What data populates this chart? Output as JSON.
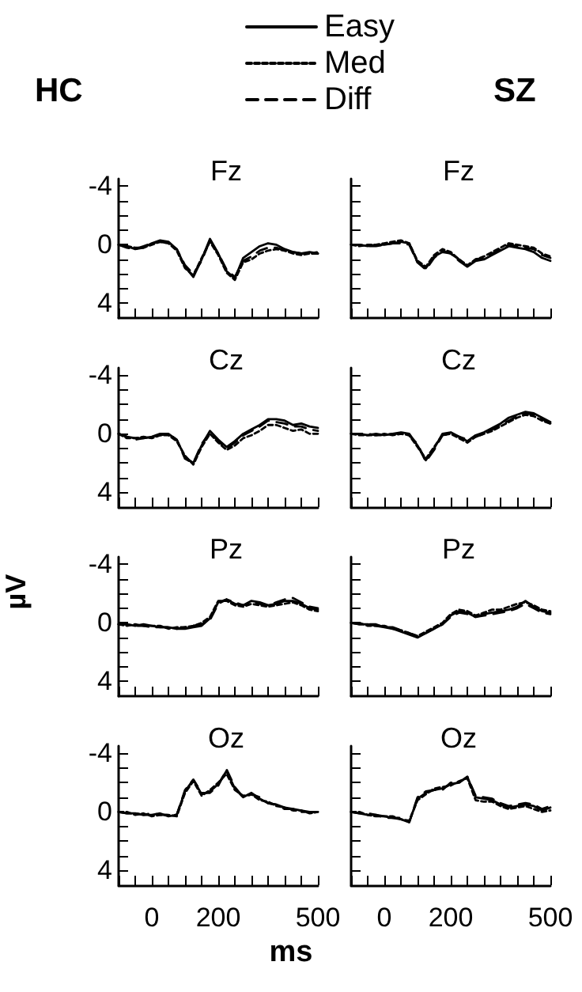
{
  "chart_data": [
    {
      "type": "line",
      "title": "Fz",
      "annotations": [
        "HC"
      ],
      "legend": "top",
      "marker": "none",
      "grid": false,
      "tick_labels": "y",
      "x": [
        -100,
        -75,
        -50,
        -25,
        0,
        25,
        50,
        75,
        100,
        125,
        150,
        175,
        200,
        225,
        250,
        275,
        300,
        325,
        350,
        375,
        400,
        425,
        450,
        475,
        500
      ],
      "xlim": [
        -100,
        500
      ],
      "xticks": [
        {
          "value": -100,
          "label": null
        },
        {
          "value": -50,
          "label": null
        },
        0,
        {
          "value": 50,
          "label": null
        },
        {
          "value": 100,
          "label": null
        },
        {
          "value": 150,
          "label": null
        },
        200,
        {
          "value": 250,
          "label": null
        },
        {
          "value": 300,
          "label": null
        },
        {
          "value": 350,
          "label": null
        },
        {
          "value": 400,
          "label": null
        },
        {
          "value": 450,
          "label": null
        },
        500
      ],
      "ylim": [
        5,
        -4.5
      ],
      "yticks": [
        -4,
        {
          "value": -3,
          "label": null
        },
        {
          "value": -2,
          "label": null
        },
        {
          "value": -1,
          "label": null
        },
        0,
        {
          "value": 1,
          "label": null
        },
        {
          "value": 2,
          "label": null
        },
        {
          "value": 3,
          "label": null
        },
        4
      ],
      "series": [
        {
          "name": "Easy",
          "color": "#000000",
          "line_style": "solid",
          "values": [
            0,
            0.1,
            0.3,
            0.2,
            -0.1,
            -0.3,
            -0.2,
            0.3,
            1.5,
            2.2,
            1.0,
            -0.4,
            0.6,
            1.8,
            2.3,
            0.9,
            0.5,
            0.1,
            -0.1,
            0,
            0.3,
            0.5,
            0.6,
            0.5,
            0.6
          ]
        },
        {
          "name": "Med",
          "color": "#000000",
          "line_style": "dotted",
          "values": [
            0,
            0.1,
            0.2,
            0.2,
            0,
            -0.2,
            -0.1,
            0.4,
            1.6,
            2.1,
            0.9,
            -0.2,
            0.7,
            1.9,
            2.4,
            1.2,
            1.0,
            0.6,
            0.4,
            0.3,
            0.4,
            0.6,
            0.7,
            0.6,
            0.5
          ]
        },
        {
          "name": "Diff",
          "color": "#000000",
          "line_style": "dashed",
          "values": [
            0,
            0.2,
            0.3,
            0.1,
            -0.1,
            -0.2,
            -0.1,
            0.3,
            1.4,
            2.0,
            1.1,
            -0.3,
            0.6,
            1.7,
            2.2,
            1.1,
            0.8,
            0.4,
            0.2,
            0.2,
            0.4,
            0.5,
            0.6,
            0.6,
            0.6
          ]
        }
      ]
    },
    {
      "type": "line",
      "title": "Fz",
      "annotations": [
        "SZ"
      ],
      "marker": "none",
      "grid": false,
      "tick_labels": false,
      "x": [
        -100,
        -75,
        -50,
        -25,
        0,
        25,
        50,
        75,
        100,
        125,
        150,
        175,
        200,
        225,
        250,
        275,
        300,
        325,
        350,
        375,
        400,
        425,
        450,
        475,
        500
      ],
      "xlim": [
        -100,
        500
      ],
      "xticks": [
        {
          "value": -100,
          "label": null
        },
        {
          "value": -50,
          "label": null
        },
        0,
        {
          "value": 50,
          "label": null
        },
        {
          "value": 100,
          "label": null
        },
        {
          "value": 150,
          "label": null
        },
        200,
        {
          "value": 250,
          "label": null
        },
        {
          "value": 300,
          "label": null
        },
        {
          "value": 350,
          "label": null
        },
        {
          "value": 400,
          "label": null
        },
        {
          "value": 450,
          "label": null
        },
        500
      ],
      "ylim": [
        5,
        -4.5
      ],
      "yticks": [
        -4,
        {
          "value": -3,
          "label": null
        },
        {
          "value": -2,
          "label": null
        },
        {
          "value": -1,
          "label": null
        },
        0,
        {
          "value": 1,
          "label": null
        },
        {
          "value": 2,
          "label": null
        },
        {
          "value": 3,
          "label": null
        },
        4
      ],
      "series": [
        {
          "color": "#000000",
          "line_style": "solid",
          "values": [
            0,
            0,
            0.1,
            0,
            0,
            -0.1,
            -0.2,
            -0.1,
            1.2,
            1.6,
            0.8,
            0.5,
            0.6,
            1.0,
            1.5,
            1.1,
            1.0,
            0.7,
            0.4,
            0.1,
            0.2,
            0.3,
            0.5,
            0.9,
            1.1
          ]
        },
        {
          "color": "#000000",
          "line_style": "dotted",
          "values": [
            0,
            0.1,
            0,
            0,
            -0.1,
            -0.2,
            -0.3,
            -0.1,
            1.1,
            1.5,
            0.7,
            0.3,
            0.5,
            1.0,
            1.4,
            1.0,
            0.8,
            0.5,
            0.2,
            -0.1,
            0,
            0.1,
            0.2,
            0.6,
            0.8
          ]
        },
        {
          "color": "#000000",
          "line_style": "dashed",
          "values": [
            0,
            0,
            0.1,
            0.1,
            0,
            -0.1,
            -0.1,
            0,
            1.2,
            1.7,
            0.9,
            0.4,
            0.6,
            1.1,
            1.5,
            1.0,
            0.9,
            0.6,
            0.3,
            0,
            0.1,
            0.2,
            0.3,
            0.7,
            0.9
          ]
        }
      ]
    },
    {
      "type": "line",
      "title": "Cz",
      "marker": "none",
      "grid": false,
      "tick_labels": "y",
      "x": [
        -100,
        -75,
        -50,
        -25,
        0,
        25,
        50,
        75,
        100,
        125,
        150,
        175,
        200,
        225,
        250,
        275,
        300,
        325,
        350,
        375,
        400,
        425,
        450,
        475,
        500
      ],
      "xlim": [
        -100,
        500
      ],
      "xticks": [
        {
          "value": -100,
          "label": null
        },
        {
          "value": -50,
          "label": null
        },
        0,
        {
          "value": 50,
          "label": null
        },
        {
          "value": 100,
          "label": null
        },
        {
          "value": 150,
          "label": null
        },
        200,
        {
          "value": 250,
          "label": null
        },
        {
          "value": 300,
          "label": null
        },
        {
          "value": 350,
          "label": null
        },
        {
          "value": 400,
          "label": null
        },
        {
          "value": 450,
          "label": null
        },
        500
      ],
      "ylim": [
        5,
        -4.5
      ],
      "yticks": [
        -4,
        {
          "value": -3,
          "label": null
        },
        {
          "value": -2,
          "label": null
        },
        {
          "value": -1,
          "label": null
        },
        0,
        {
          "value": 1,
          "label": null
        },
        {
          "value": 2,
          "label": null
        },
        {
          "value": 3,
          "label": null
        },
        4
      ],
      "series": [
        {
          "color": "#000000",
          "line_style": "solid",
          "values": [
            0,
            0.2,
            0.3,
            0.3,
            0.2,
            0,
            0,
            0.4,
            1.6,
            2.0,
            0.8,
            -0.2,
            0.4,
            0.9,
            0.5,
            0,
            -0.3,
            -0.6,
            -1.0,
            -1.0,
            -0.9,
            -0.6,
            -0.7,
            -0.5,
            -0.4
          ]
        },
        {
          "color": "#000000",
          "line_style": "dotted",
          "values": [
            0,
            0.3,
            0.3,
            0.2,
            0.3,
            0.1,
            0.1,
            0.5,
            1.5,
            2.1,
            0.9,
            0,
            0.6,
            1.1,
            0.8,
            0.3,
            0.1,
            -0.2,
            -0.6,
            -0.6,
            -0.4,
            -0.2,
            -0.3,
            0,
            0
          ]
        },
        {
          "color": "#000000",
          "line_style": "dashed",
          "values": [
            0,
            0.2,
            0.4,
            0.3,
            0.2,
            0.1,
            0,
            0.4,
            1.7,
            2.0,
            0.7,
            -0.1,
            0.5,
            1.0,
            0.6,
            0.1,
            -0.2,
            -0.5,
            -0.9,
            -0.8,
            -0.7,
            -0.5,
            -0.5,
            -0.3,
            -0.2
          ]
        }
      ]
    },
    {
      "type": "line",
      "title": "Cz",
      "marker": "none",
      "grid": false,
      "tick_labels": false,
      "x": [
        -100,
        -75,
        -50,
        -25,
        0,
        25,
        50,
        75,
        100,
        125,
        150,
        175,
        200,
        225,
        250,
        275,
        300,
        325,
        350,
        375,
        400,
        425,
        450,
        475,
        500
      ],
      "xlim": [
        -100,
        500
      ],
      "xticks": [
        {
          "value": -100,
          "label": null
        },
        {
          "value": -50,
          "label": null
        },
        0,
        {
          "value": 50,
          "label": null
        },
        {
          "value": 100,
          "label": null
        },
        {
          "value": 150,
          "label": null
        },
        200,
        {
          "value": 250,
          "label": null
        },
        {
          "value": 300,
          "label": null
        },
        {
          "value": 350,
          "label": null
        },
        {
          "value": 400,
          "label": null
        },
        {
          "value": 450,
          "label": null
        },
        500
      ],
      "ylim": [
        5,
        -4.5
      ],
      "yticks": [
        -4,
        {
          "value": -3,
          "label": null
        },
        {
          "value": -2,
          "label": null
        },
        {
          "value": -1,
          "label": null
        },
        0,
        {
          "value": 1,
          "label": null
        },
        {
          "value": 2,
          "label": null
        },
        {
          "value": 3,
          "label": null
        },
        4
      ],
      "series": [
        {
          "color": "#000000",
          "line_style": "solid",
          "values": [
            0,
            0,
            0.1,
            0,
            0.1,
            0,
            -0.1,
            0,
            0.8,
            1.8,
            1.0,
            0,
            -0.1,
            0.2,
            0.5,
            0.1,
            -0.1,
            -0.4,
            -0.7,
            -1.1,
            -1.3,
            -1.5,
            -1.4,
            -1.1,
            -0.8
          ]
        },
        {
          "color": "#000000",
          "line_style": "dotted",
          "values": [
            0,
            0.1,
            0.1,
            0.1,
            0,
            0.1,
            0,
            0.1,
            0.9,
            1.7,
            0.9,
            0.1,
            0,
            0.3,
            0.6,
            0.2,
            0,
            -0.2,
            -0.5,
            -0.8,
            -1.1,
            -1.3,
            -1.2,
            -0.9,
            -0.7
          ]
        },
        {
          "color": "#000000",
          "line_style": "dashed",
          "values": [
            0,
            0,
            0,
            0.1,
            0.1,
            0,
            0,
            0.1,
            0.7,
            1.9,
            1.1,
            0.1,
            0,
            0.2,
            0.4,
            0.2,
            0,
            -0.3,
            -0.6,
            -0.9,
            -1.2,
            -1.4,
            -1.3,
            -1.0,
            -0.7
          ]
        }
      ]
    },
    {
      "type": "line",
      "title": "Pz",
      "ylabel": "µV",
      "marker": "none",
      "grid": false,
      "tick_labels": "y",
      "x": [
        -100,
        -75,
        -50,
        -25,
        0,
        25,
        50,
        75,
        100,
        125,
        150,
        175,
        200,
        225,
        250,
        275,
        300,
        325,
        350,
        375,
        400,
        425,
        450,
        475,
        500
      ],
      "xlim": [
        -100,
        500
      ],
      "xticks": [
        {
          "value": -100,
          "label": null
        },
        {
          "value": -50,
          "label": null
        },
        0,
        {
          "value": 50,
          "label": null
        },
        {
          "value": 100,
          "label": null
        },
        {
          "value": 150,
          "label": null
        },
        200,
        {
          "value": 250,
          "label": null
        },
        {
          "value": 300,
          "label": null
        },
        {
          "value": 350,
          "label": null
        },
        {
          "value": 400,
          "label": null
        },
        {
          "value": 450,
          "label": null
        },
        500
      ],
      "ylim": [
        5,
        -4.5
      ],
      "yticks": [
        -4,
        {
          "value": -3,
          "label": null
        },
        {
          "value": -2,
          "label": null
        },
        {
          "value": -1,
          "label": null
        },
        0,
        {
          "value": 1,
          "label": null
        },
        {
          "value": 2,
          "label": null
        },
        {
          "value": 3,
          "label": null
        },
        4
      ],
      "series": [
        {
          "color": "#000000",
          "line_style": "solid",
          "values": [
            0.1,
            0.1,
            0.2,
            0.1,
            0.2,
            0.3,
            0.3,
            0.4,
            0.4,
            0.3,
            0.2,
            -0.3,
            -1.4,
            -1.6,
            -1.3,
            -1.2,
            -1.5,
            -1.4,
            -1.2,
            -1.3,
            -1.5,
            -1.5,
            -1.3,
            -1.0,
            -0.9
          ]
        },
        {
          "color": "#000000",
          "line_style": "dotted",
          "values": [
            0.1,
            0.2,
            0.1,
            0.2,
            0.2,
            0.2,
            0.4,
            0.3,
            0.3,
            0.2,
            0,
            -0.4,
            -1.5,
            -1.5,
            -1.2,
            -1.1,
            -1.3,
            -1.2,
            -1.1,
            -1.2,
            -1.3,
            -1.4,
            -1.2,
            -0.9,
            -0.8
          ]
        },
        {
          "color": "#000000",
          "line_style": "dashed",
          "values": [
            0.1,
            0.1,
            0.2,
            0.2,
            0.3,
            0.3,
            0.3,
            0.4,
            0.3,
            0.2,
            0.1,
            -0.2,
            -1.3,
            -1.6,
            -1.4,
            -1.2,
            -1.4,
            -1.3,
            -1.2,
            -1.4,
            -1.6,
            -1.7,
            -1.4,
            -1.1,
            -1.0
          ]
        }
      ]
    },
    {
      "type": "line",
      "title": "Pz",
      "marker": "none",
      "grid": false,
      "tick_labels": false,
      "x": [
        -100,
        -75,
        -50,
        -25,
        0,
        25,
        50,
        75,
        100,
        125,
        150,
        175,
        200,
        225,
        250,
        275,
        300,
        325,
        350,
        375,
        400,
        425,
        450,
        475,
        500
      ],
      "xlim": [
        -100,
        500
      ],
      "xticks": [
        {
          "value": -100,
          "label": null
        },
        {
          "value": -50,
          "label": null
        },
        0,
        {
          "value": 50,
          "label": null
        },
        {
          "value": 100,
          "label": null
        },
        {
          "value": 150,
          "label": null
        },
        200,
        {
          "value": 250,
          "label": null
        },
        {
          "value": 300,
          "label": null
        },
        {
          "value": 350,
          "label": null
        },
        {
          "value": 400,
          "label": null
        },
        {
          "value": 450,
          "label": null
        },
        500
      ],
      "ylim": [
        5,
        -4.5
      ],
      "yticks": [
        -4,
        {
          "value": -3,
          "label": null
        },
        {
          "value": -2,
          "label": null
        },
        {
          "value": -1,
          "label": null
        },
        0,
        {
          "value": 1,
          "label": null
        },
        {
          "value": 2,
          "label": null
        },
        {
          "value": 3,
          "label": null
        },
        4
      ],
      "series": [
        {
          "color": "#000000",
          "line_style": "solid",
          "values": [
            0,
            0.1,
            0.1,
            0.2,
            0.3,
            0.4,
            0.6,
            0.8,
            1.0,
            0.7,
            0.4,
            0.1,
            -0.5,
            -0.8,
            -0.7,
            -0.4,
            -0.6,
            -0.7,
            -0.8,
            -0.9,
            -1.1,
            -1.5,
            -1.1,
            -0.8,
            -0.7
          ]
        },
        {
          "color": "#000000",
          "line_style": "dotted",
          "values": [
            0,
            0,
            0.2,
            0.2,
            0.2,
            0.4,
            0.5,
            0.7,
            0.9,
            0.6,
            0.3,
            0,
            -0.6,
            -0.9,
            -0.8,
            -0.5,
            -0.7,
            -0.9,
            -0.9,
            -1.1,
            -1.3,
            -1.4,
            -1.2,
            -0.9,
            -0.8
          ]
        },
        {
          "color": "#000000",
          "line_style": "dashed",
          "values": [
            0,
            0.1,
            0.1,
            0.1,
            0.3,
            0.3,
            0.5,
            0.7,
            0.9,
            0.7,
            0.4,
            0.1,
            -0.4,
            -0.7,
            -0.6,
            -0.4,
            -0.5,
            -0.6,
            -0.7,
            -0.8,
            -1.0,
            -1.3,
            -1.0,
            -0.7,
            -0.6
          ]
        }
      ]
    },
    {
      "type": "line",
      "title": "Oz",
      "xlabel": "ms",
      "marker": "none",
      "grid": false,
      "x": [
        -100,
        -75,
        -50,
        -25,
        0,
        25,
        50,
        75,
        100,
        125,
        150,
        175,
        200,
        225,
        250,
        275,
        300,
        325,
        350,
        375,
        400,
        425,
        450,
        475,
        500
      ],
      "xlim": [
        -100,
        500
      ],
      "xticks": [
        {
          "value": -100,
          "label": null
        },
        {
          "value": -50,
          "label": null
        },
        0,
        {
          "value": 50,
          "label": null
        },
        {
          "value": 100,
          "label": null
        },
        {
          "value": 150,
          "label": null
        },
        200,
        {
          "value": 250,
          "label": null
        },
        {
          "value": 300,
          "label": null
        },
        {
          "value": 350,
          "label": null
        },
        {
          "value": 400,
          "label": null
        },
        {
          "value": 450,
          "label": null
        },
        500
      ],
      "ylim": [
        5,
        -4.5
      ],
      "yticks": [
        -4,
        {
          "value": -3,
          "label": null
        },
        {
          "value": -2,
          "label": null
        },
        {
          "value": -1,
          "label": null
        },
        0,
        {
          "value": 1,
          "label": null
        },
        {
          "value": 2,
          "label": null
        },
        {
          "value": 3,
          "label": null
        },
        4
      ],
      "series": [
        {
          "color": "#000000",
          "line_style": "solid",
          "values": [
            0,
            0.1,
            0.1,
            0.2,
            0.2,
            0.1,
            0.3,
            0.2,
            -1.4,
            -2.2,
            -1.2,
            -1.4,
            -1.9,
            -2.8,
            -1.6,
            -1.0,
            -1.3,
            -0.9,
            -0.6,
            -0.5,
            -0.3,
            -0.2,
            -0.1,
            0,
            0
          ]
        },
        {
          "color": "#000000",
          "line_style": "dotted",
          "values": [
            0,
            0,
            0.2,
            0.1,
            0.3,
            0.2,
            0.2,
            0.3,
            -1.3,
            -2.1,
            -1.1,
            -1.5,
            -2.0,
            -2.6,
            -1.5,
            -1.1,
            -1.2,
            -0.8,
            -0.7,
            -0.4,
            -0.3,
            -0.1,
            -0.1,
            0.1,
            0
          ]
        },
        {
          "color": "#000000",
          "line_style": "dashed",
          "values": [
            0,
            0.1,
            0.1,
            0.2,
            0.1,
            0.2,
            0.2,
            0.2,
            -1.5,
            -2.2,
            -1.3,
            -1.3,
            -1.8,
            -2.9,
            -1.7,
            -1.0,
            -1.2,
            -1.0,
            -0.6,
            -0.5,
            -0.2,
            -0.2,
            0,
            0,
            0.1
          ]
        }
      ]
    },
    {
      "type": "line",
      "title": "Oz",
      "marker": "none",
      "grid": false,
      "tick_labels": "x",
      "x": [
        -100,
        -75,
        -50,
        -25,
        0,
        25,
        50,
        75,
        100,
        125,
        150,
        175,
        200,
        225,
        250,
        275,
        300,
        325,
        350,
        375,
        400,
        425,
        450,
        475,
        500
      ],
      "xlim": [
        -100,
        500
      ],
      "xticks": [
        {
          "value": -100,
          "label": null
        },
        {
          "value": -50,
          "label": null
        },
        0,
        {
          "value": 50,
          "label": null
        },
        {
          "value": 100,
          "label": null
        },
        {
          "value": 150,
          "label": null
        },
        200,
        {
          "value": 250,
          "label": null
        },
        {
          "value": 300,
          "label": null
        },
        {
          "value": 350,
          "label": null
        },
        {
          "value": 400,
          "label": null
        },
        {
          "value": 450,
          "label": null
        },
        500
      ],
      "ylim": [
        5,
        -4.5
      ],
      "yticks": [
        -4,
        {
          "value": -3,
          "label": null
        },
        {
          "value": -2,
          "label": null
        },
        {
          "value": -1,
          "label": null
        },
        0,
        {
          "value": 1,
          "label": null
        },
        {
          "value": 2,
          "label": null
        },
        {
          "value": 3,
          "label": null
        },
        4
      ],
      "series": [
        {
          "color": "#000000",
          "line_style": "solid",
          "values": [
            0,
            0.1,
            0.2,
            0.2,
            0.3,
            0.4,
            0.5,
            0.7,
            -0.9,
            -1.3,
            -1.5,
            -1.6,
            -1.9,
            -2.0,
            -2.4,
            -1.0,
            -0.9,
            -0.8,
            -0.5,
            -0.3,
            -0.4,
            -0.5,
            -0.4,
            -0.1,
            -0.3
          ]
        },
        {
          "color": "#000000",
          "line_style": "dotted",
          "values": [
            0,
            0,
            0.2,
            0.3,
            0.3,
            0.3,
            0.5,
            0.6,
            -0.8,
            -1.2,
            -1.6,
            -1.7,
            -1.8,
            -2.1,
            -2.3,
            -0.8,
            -0.7,
            -0.7,
            -0.4,
            -0.2,
            -0.3,
            -0.4,
            -0.2,
            0,
            -0.1
          ]
        },
        {
          "color": "#000000",
          "line_style": "dashed",
          "values": [
            0,
            0.1,
            0.1,
            0.2,
            0.4,
            0.4,
            0.4,
            0.7,
            -1.0,
            -1.4,
            -1.5,
            -1.5,
            -2.0,
            -2.0,
            -2.4,
            -1.1,
            -1.0,
            -0.9,
            -0.6,
            -0.4,
            -0.5,
            -0.6,
            -0.5,
            -0.2,
            -0.4
          ]
        }
      ]
    }
  ]
}
